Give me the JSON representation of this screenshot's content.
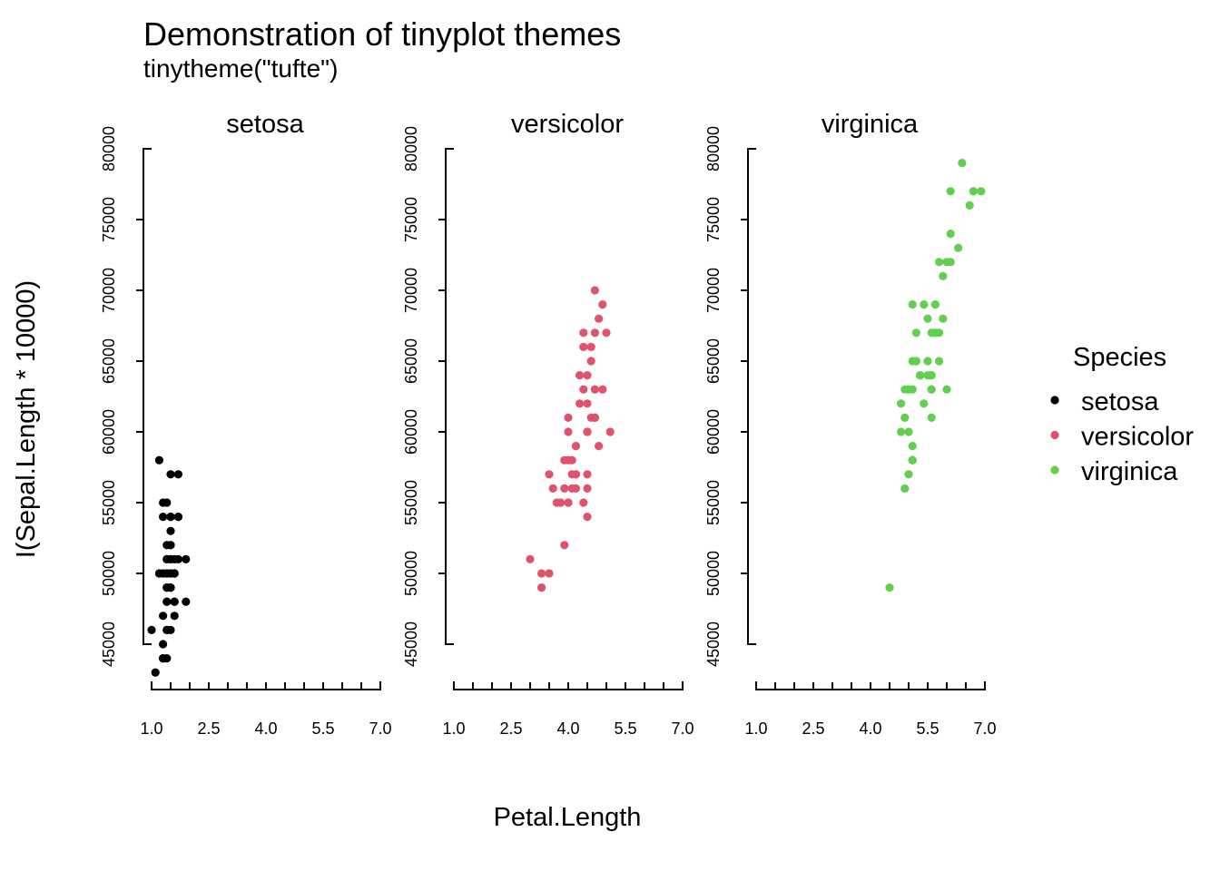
{
  "chart_data": {
    "type": "scatter",
    "title": "Demonstration of tinyplot themes",
    "subtitle": "tinytheme(\"tufte\")",
    "xlabel": "Petal.Length",
    "ylabel": "I(Sepal.Length * 10000)",
    "xlim": [
      1.0,
      7.0
    ],
    "ylim": [
      45000,
      80000
    ],
    "x_ticks": [
      "1.0",
      "2.5",
      "4.0",
      "5.5",
      "7.0"
    ],
    "y_ticks": [
      "45000",
      "50000",
      "55000",
      "60000",
      "65000",
      "70000",
      "75000",
      "80000"
    ],
    "grid": false,
    "legend": {
      "title": "Species",
      "placement": "right"
    },
    "series": [
      {
        "name": "setosa",
        "color": "#000000",
        "points": [
          [
            1.4,
            51000
          ],
          [
            1.4,
            49000
          ],
          [
            1.3,
            47000
          ],
          [
            1.5,
            46000
          ],
          [
            1.4,
            50000
          ],
          [
            1.7,
            54000
          ],
          [
            1.4,
            46000
          ],
          [
            1.5,
            50000
          ],
          [
            1.4,
            44000
          ],
          [
            1.5,
            49000
          ],
          [
            1.5,
            54000
          ],
          [
            1.6,
            48000
          ],
          [
            1.4,
            48000
          ],
          [
            1.1,
            43000
          ],
          [
            1.2,
            58000
          ],
          [
            1.5,
            57000
          ],
          [
            1.3,
            54000
          ],
          [
            1.4,
            51000
          ],
          [
            1.7,
            57000
          ],
          [
            1.5,
            51000
          ],
          [
            1.7,
            54000
          ],
          [
            1.5,
            51000
          ],
          [
            1.0,
            46000
          ],
          [
            1.7,
            51000
          ],
          [
            1.9,
            48000
          ],
          [
            1.6,
            50000
          ],
          [
            1.6,
            50000
          ],
          [
            1.5,
            52000
          ],
          [
            1.4,
            52000
          ],
          [
            1.6,
            47000
          ],
          [
            1.6,
            48000
          ],
          [
            1.5,
            54000
          ],
          [
            1.5,
            52000
          ],
          [
            1.4,
            55000
          ],
          [
            1.5,
            49000
          ],
          [
            1.2,
            50000
          ],
          [
            1.3,
            55000
          ],
          [
            1.4,
            49000
          ],
          [
            1.3,
            44000
          ],
          [
            1.5,
            51000
          ],
          [
            1.3,
            50000
          ],
          [
            1.3,
            45000
          ],
          [
            1.3,
            44000
          ],
          [
            1.6,
            50000
          ],
          [
            1.9,
            51000
          ],
          [
            1.4,
            48000
          ],
          [
            1.6,
            51000
          ],
          [
            1.4,
            46000
          ],
          [
            1.5,
            53000
          ],
          [
            1.4,
            50000
          ]
        ]
      },
      {
        "name": "versicolor",
        "color": "#DF536B",
        "points": [
          [
            4.7,
            70000
          ],
          [
            4.5,
            64000
          ],
          [
            4.9,
            69000
          ],
          [
            4.0,
            55000
          ],
          [
            4.6,
            65000
          ],
          [
            4.5,
            57000
          ],
          [
            4.7,
            63000
          ],
          [
            3.3,
            49000
          ],
          [
            4.6,
            66000
          ],
          [
            3.9,
            52000
          ],
          [
            3.5,
            50000
          ],
          [
            4.2,
            59000
          ],
          [
            4.0,
            60000
          ],
          [
            4.7,
            61000
          ],
          [
            3.6,
            56000
          ],
          [
            4.4,
            67000
          ],
          [
            4.5,
            56000
          ],
          [
            4.1,
            58000
          ],
          [
            4.5,
            62000
          ],
          [
            3.9,
            56000
          ],
          [
            4.8,
            59000
          ],
          [
            4.0,
            61000
          ],
          [
            4.9,
            63000
          ],
          [
            4.7,
            61000
          ],
          [
            4.3,
            64000
          ],
          [
            4.4,
            66000
          ],
          [
            4.8,
            68000
          ],
          [
            5.0,
            67000
          ],
          [
            4.5,
            60000
          ],
          [
            3.5,
            57000
          ],
          [
            3.8,
            55000
          ],
          [
            3.7,
            55000
          ],
          [
            3.9,
            58000
          ],
          [
            5.1,
            60000
          ],
          [
            4.5,
            54000
          ],
          [
            4.5,
            60000
          ],
          [
            4.7,
            67000
          ],
          [
            4.4,
            63000
          ],
          [
            4.1,
            56000
          ],
          [
            4.0,
            55000
          ],
          [
            4.4,
            55000
          ],
          [
            4.6,
            61000
          ],
          [
            4.0,
            58000
          ],
          [
            3.3,
            50000
          ],
          [
            4.2,
            56000
          ],
          [
            4.2,
            57000
          ],
          [
            4.2,
            57000
          ],
          [
            4.3,
            62000
          ],
          [
            3.0,
            51000
          ],
          [
            4.1,
            57000
          ]
        ]
      },
      {
        "name": "virginica",
        "color": "#61D04F",
        "points": [
          [
            6.0,
            63000
          ],
          [
            5.1,
            58000
          ],
          [
            5.9,
            71000
          ],
          [
            5.6,
            63000
          ],
          [
            5.8,
            65000
          ],
          [
            6.6,
            76000
          ],
          [
            4.5,
            49000
          ],
          [
            6.3,
            73000
          ],
          [
            5.8,
            67000
          ],
          [
            6.1,
            72000
          ],
          [
            5.1,
            65000
          ],
          [
            5.3,
            64000
          ],
          [
            5.5,
            68000
          ],
          [
            5.0,
            57000
          ],
          [
            5.1,
            58000
          ],
          [
            5.3,
            64000
          ],
          [
            5.5,
            65000
          ],
          [
            6.7,
            77000
          ],
          [
            6.9,
            77000
          ],
          [
            5.0,
            60000
          ],
          [
            5.7,
            69000
          ],
          [
            4.9,
            56000
          ],
          [
            6.7,
            77000
          ],
          [
            4.9,
            63000
          ],
          [
            5.7,
            67000
          ],
          [
            6.0,
            72000
          ],
          [
            4.8,
            62000
          ],
          [
            4.9,
            61000
          ],
          [
            5.6,
            64000
          ],
          [
            5.8,
            72000
          ],
          [
            6.1,
            74000
          ],
          [
            6.4,
            79000
          ],
          [
            5.6,
            64000
          ],
          [
            5.1,
            63000
          ],
          [
            5.6,
            61000
          ],
          [
            6.1,
            77000
          ],
          [
            5.6,
            63000
          ],
          [
            5.5,
            64000
          ],
          [
            4.8,
            60000
          ],
          [
            5.4,
            69000
          ],
          [
            5.6,
            67000
          ],
          [
            5.1,
            69000
          ],
          [
            5.1,
            58000
          ],
          [
            5.9,
            68000
          ],
          [
            5.7,
            67000
          ],
          [
            5.2,
            67000
          ],
          [
            5.0,
            63000
          ],
          [
            5.2,
            65000
          ],
          [
            5.4,
            62000
          ],
          [
            5.1,
            59000
          ]
        ]
      }
    ]
  }
}
